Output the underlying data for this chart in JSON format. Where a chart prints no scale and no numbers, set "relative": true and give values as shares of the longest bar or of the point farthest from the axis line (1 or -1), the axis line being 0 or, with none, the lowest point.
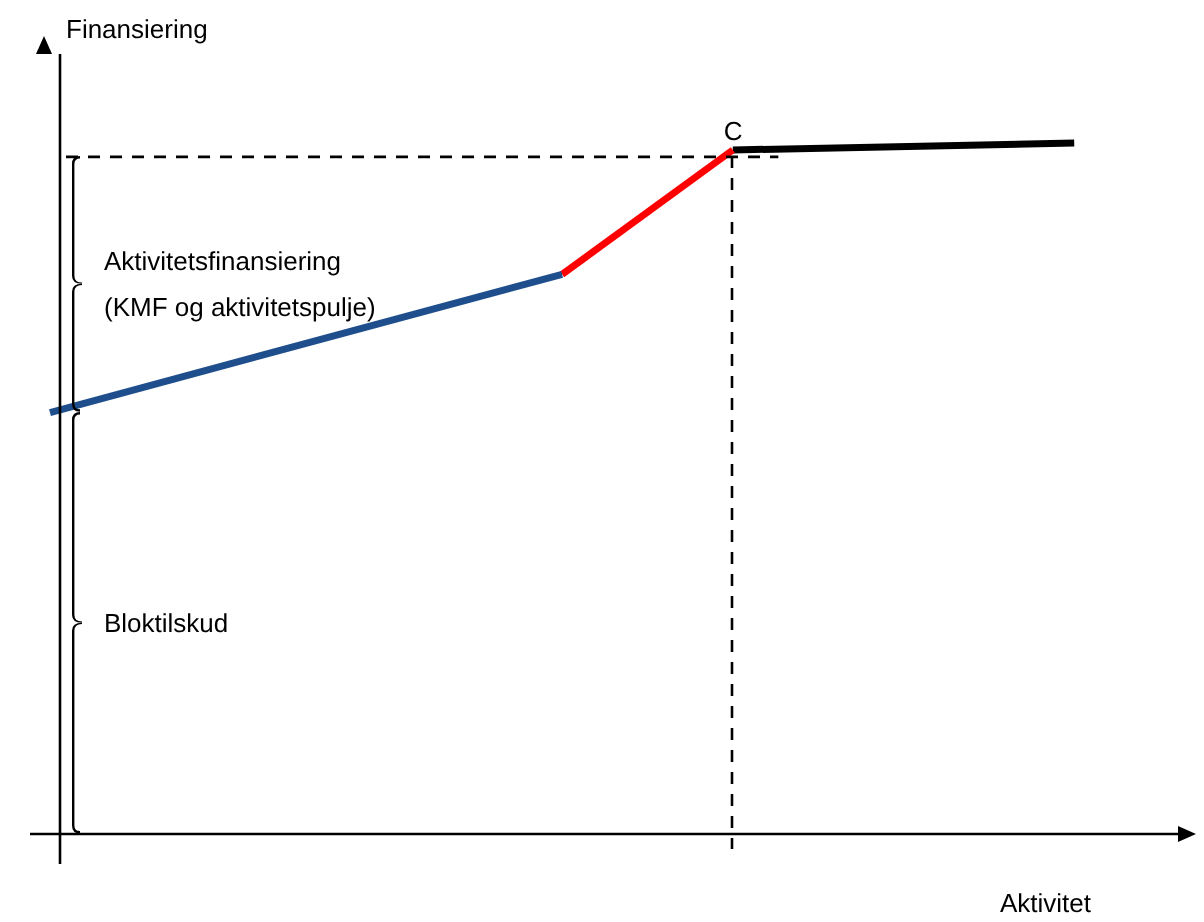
{
  "chart_data": {
    "type": "line",
    "relative": true,
    "xlabel": "Aktivitet",
    "ylabel": "Finansiering",
    "tick_labels": false,
    "grid": false,
    "legend": false,
    "marker": "none",
    "categories": [
      null,
      null,
      null,
      null,
      null,
      null,
      null,
      null,
      null,
      null,
      null,
      null,
      null,
      null,
      null,
      null,
      null,
      null,
      null,
      null,
      null,
      null,
      null,
      null,
      null,
      null,
      null,
      null,
      null,
      null,
      null,
      null,
      null,
      null,
      null,
      null,
      null,
      null,
      null,
      null,
      null
    ],
    "series": [
      {
        "color": "#1f4e8c",
        "values": [
          0.61,
          null,
          null,
          null,
          null,
          null,
          null,
          null,
          null,
          null,
          null,
          null,
          null,
          null,
          null,
          null,
          null,
          null,
          0.81,
          null,
          null,
          null,
          null,
          null,
          null,
          null,
          null,
          null,
          null,
          null,
          null,
          null,
          null,
          null,
          null,
          null,
          null,
          null,
          null,
          null,
          null
        ]
      },
      {
        "color": "#ff0000",
        "values": [
          null,
          null,
          null,
          null,
          null,
          null,
          null,
          null,
          null,
          null,
          null,
          null,
          null,
          null,
          null,
          null,
          null,
          null,
          0.81,
          null,
          null,
          null,
          null,
          null,
          0.99,
          null,
          null,
          null,
          null,
          null,
          null,
          null,
          null,
          null,
          null,
          null,
          null,
          null,
          null,
          null,
          null
        ]
      },
      {
        "color": "#000000",
        "values": [
          null,
          null,
          null,
          null,
          null,
          null,
          null,
          null,
          null,
          null,
          null,
          null,
          null,
          null,
          null,
          null,
          null,
          null,
          null,
          null,
          null,
          null,
          null,
          null,
          0.99,
          null,
          null,
          null,
          null,
          null,
          null,
          null,
          null,
          null,
          null,
          null,
          1,
          null,
          null,
          null,
          null
        ]
      }
    ],
    "ref_lines": [
      {
        "axis": "y",
        "value": 0.98,
        "line_style": "dashed",
        "color": "#000000"
      }
    ],
    "annotations": [
      "Aktivitetsfinansiering (KMF og aktivitetspulje)",
      "Bloktilskud",
      {
        "text": "C",
        "y": 0.99
      }
    ]
  }
}
